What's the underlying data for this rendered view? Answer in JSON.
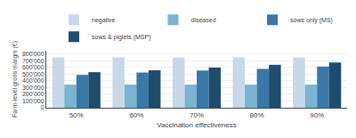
{
  "chart_data": {
    "type": "bar",
    "categories": [
      "50%",
      "60%",
      "70%",
      "80%",
      "90%"
    ],
    "series": [
      {
        "name": "negative",
        "color": "#c8d8e8",
        "values": [
          750000,
          750000,
          750000,
          750000,
          750000
        ]
      },
      {
        "name": "diseased",
        "color": "#7ab4d0",
        "values": [
          345000,
          345000,
          345000,
          345000,
          345000
        ]
      },
      {
        "name": "sows only (MS)",
        "color": "#3a78a8",
        "values": [
          490000,
          525000,
          555000,
          580000,
          615000
        ]
      },
      {
        "name": "sows & piglets (MSP)",
        "color": "#1e4d6e",
        "values": [
          530000,
          560000,
          600000,
          640000,
          675000
        ]
      }
    ],
    "xlabel": "Vaccination effectiveness",
    "ylabel": "Farm-level gross margin (€)",
    "ylim": [
      0,
      850000
    ],
    "yticks": [
      0,
      {
        "value": 100000,
        "label": "100'000"
      },
      {
        "value": 200000,
        "label": "200'000"
      },
      {
        "value": 300000,
        "label": "300'000"
      },
      {
        "value": 400000,
        "label": "400'000"
      },
      {
        "value": 500000,
        "label": "500'000"
      },
      {
        "value": 600000,
        "label": "600'000"
      },
      {
        "value": 700000,
        "label": "700'000"
      },
      {
        "value": 800000,
        "label": "800'000"
      }
    ],
    "grid": true,
    "legend": "top"
  }
}
